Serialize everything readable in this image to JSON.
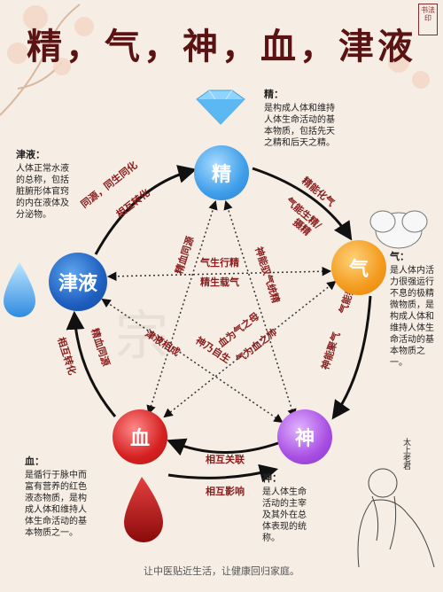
{
  "title": "精，气，神，血，津液",
  "seal_text": "书法印",
  "nodes": {
    "jing": "精",
    "qi": "气",
    "shen": "神",
    "xue": "血",
    "jinye": "津液"
  },
  "notes": {
    "jing": {
      "head": "精：",
      "body": [
        "是构成人体和维持",
        "人体生命活动的基",
        "本物质，包括先天",
        "之精和后天之精。"
      ]
    },
    "jinye": {
      "head": "津液：",
      "body": [
        "人体正常水液",
        "的总称，包括",
        "脏腑形体官窍",
        "的内在液体及",
        "分泌物。"
      ]
    },
    "qi": {
      "head": "气：",
      "body": [
        "是人体内活",
        "力很强运行",
        "不息的极精",
        "微物质，是",
        "构成人体和",
        "维持人体生",
        "命活动的基",
        "本物质之",
        "一。"
      ]
    },
    "xue": {
      "head": "血：",
      "body": [
        "是循行于脉中而",
        "富有营养的红色",
        "液态物质，是构",
        "成人体和维持人",
        "体生命活动的基",
        "本物质之一。"
      ]
    },
    "shen": {
      "head": "神：",
      "body": [
        "是人体生命",
        "活动的主宰",
        "及其外在总",
        "体表现的统",
        "称。"
      ]
    }
  },
  "relations": {
    "jinye_jing_1": "同源，同生同化",
    "jinye_jing_2": "相互转化",
    "jing_qi_1": "精能化气",
    "jing_qi_2": "气能生精/",
    "jing_qi_3": "摄精",
    "jinye_qi_1": "气生行精",
    "jinye_qi_2": "精生载气",
    "jing_shen": "神能驭气统精",
    "jing_xue": "精血同源",
    "qi_shen_1": "气能养神",
    "qi_shen_2": "神能聚气",
    "jinye_shen_1": "津液相成",
    "jinye_shen_2": "神乃自生",
    "qi_xue_1": "血为气之母",
    "qi_xue_2": "气为血之帅",
    "jinye_xue_1": "精血同源",
    "jinye_xue_2": "相互转化",
    "xue_shen_1": "相互关联",
    "xue_shen_2": "相互影响"
  },
  "signature": "太上老君",
  "footer": "让中医贴近生活，让健康回归家庭。",
  "colors": {
    "title": "#5a1212",
    "arrow": "#111111",
    "label": "#8a1d1d",
    "background": "#f6ede4"
  }
}
